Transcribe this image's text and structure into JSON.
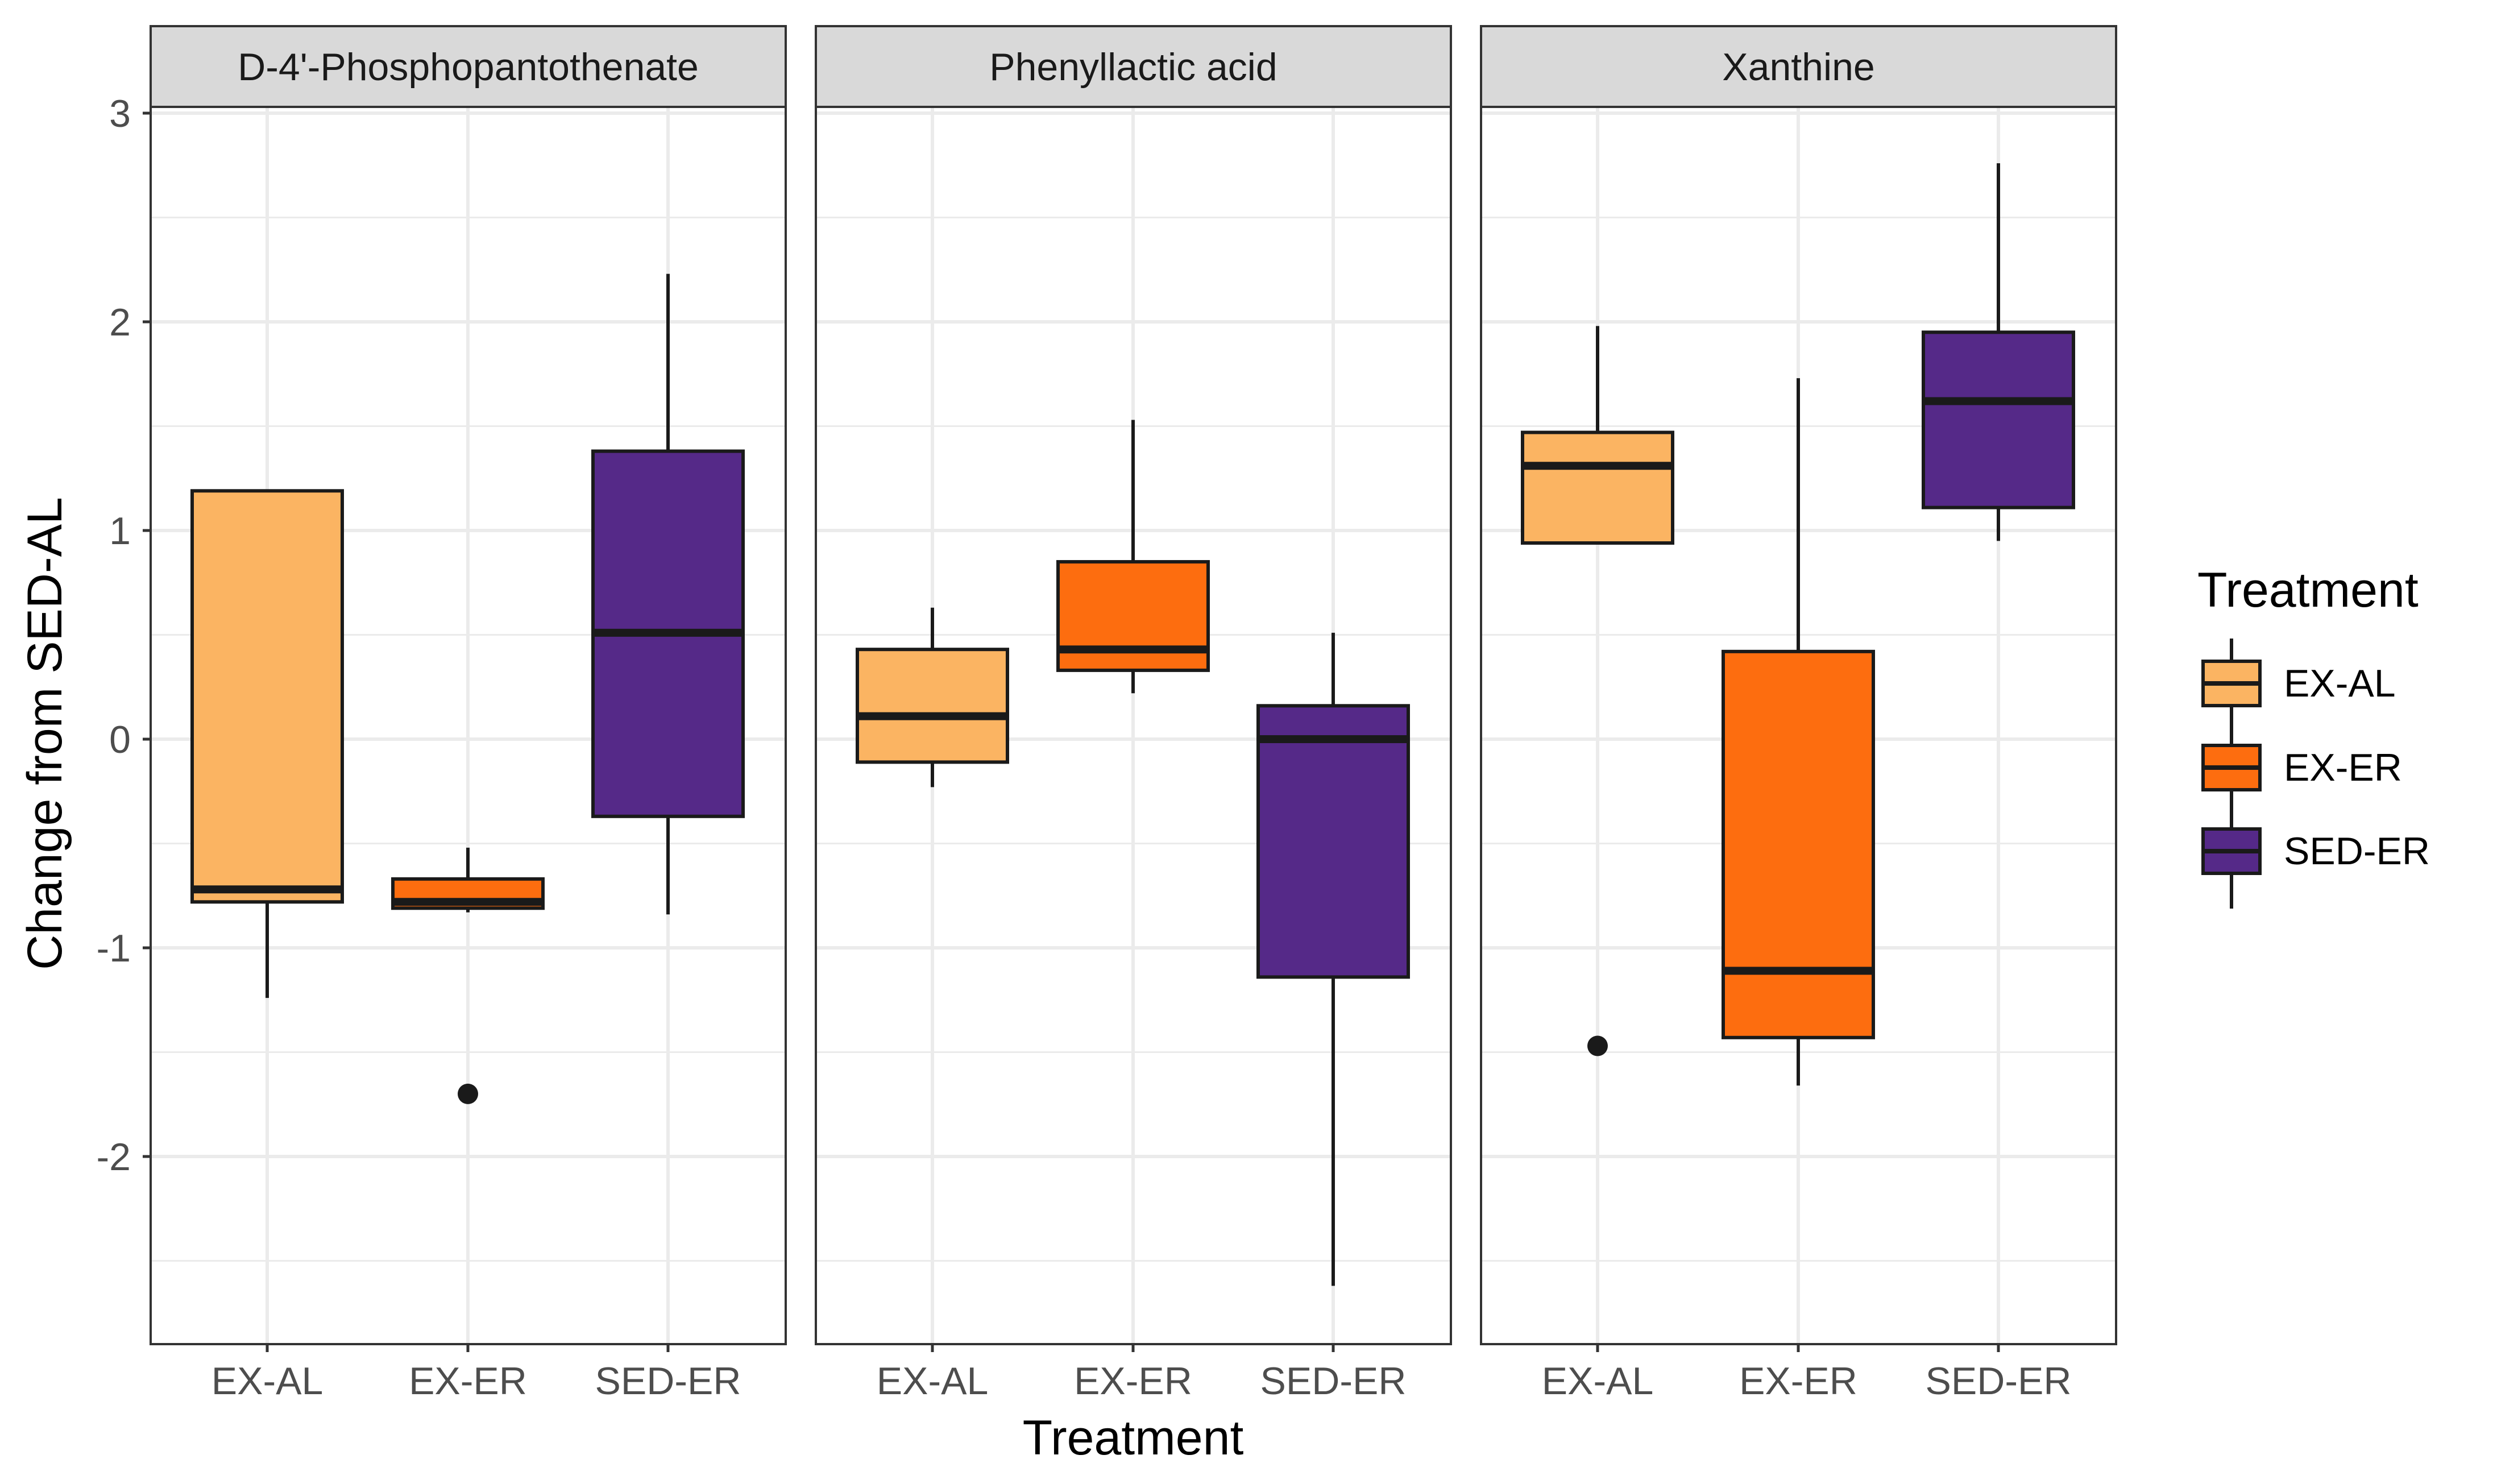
{
  "chart_data": {
    "type": "boxplot",
    "facets": [
      "D-4'-Phosphopantothenate",
      "Phenyllactic acid",
      "Xanthine"
    ],
    "categories": [
      "EX-AL",
      "EX-ER",
      "SED-ER"
    ],
    "xlabel": "Treatment",
    "ylabel": "Change from SED-AL",
    "ylim": [
      -2.85,
      3.0
    ],
    "y_ticks": [
      3,
      2,
      1,
      0,
      -1,
      -2
    ],
    "y_tick_labels": [
      "3",
      "2",
      "1",
      "0",
      "-1",
      "-2"
    ],
    "grid": true,
    "legend": {
      "title": "Treatment",
      "placement": "right",
      "entries": [
        "EX-AL",
        "EX-ER",
        "SED-ER"
      ]
    },
    "colors": {
      "EX-AL": "#FBB462",
      "EX-ER": "#FD6D0F",
      "SED-ER": "#552988"
    },
    "series": [
      {
        "facet": "D-4'-Phosphopantothenate",
        "boxes": [
          {
            "category": "EX-AL",
            "whisker_low": -1.24,
            "q1": -0.78,
            "median": -0.72,
            "q3": 1.19,
            "whisker_high": 1.19,
            "outliers": []
          },
          {
            "category": "EX-ER",
            "whisker_low": -0.83,
            "q1": -0.81,
            "median": -0.78,
            "q3": -0.67,
            "whisker_high": -0.52,
            "outliers": [
              -1.7
            ]
          },
          {
            "category": "SED-ER",
            "whisker_low": -0.84,
            "q1": -0.37,
            "median": 0.51,
            "q3": 1.38,
            "whisker_high": 2.23,
            "outliers": []
          }
        ]
      },
      {
        "facet": "Phenyllactic acid",
        "boxes": [
          {
            "category": "EX-AL",
            "whisker_low": -0.23,
            "q1": -0.11,
            "median": 0.11,
            "q3": 0.43,
            "whisker_high": 0.63,
            "outliers": []
          },
          {
            "category": "EX-ER",
            "whisker_low": 0.22,
            "q1": 0.33,
            "median": 0.43,
            "q3": 0.85,
            "whisker_high": 1.53,
            "outliers": []
          },
          {
            "category": "SED-ER",
            "whisker_low": -2.62,
            "q1": -1.14,
            "median": 0.0,
            "q3": 0.16,
            "whisker_high": 0.51,
            "outliers": []
          }
        ]
      },
      {
        "facet": "Xanthine",
        "boxes": [
          {
            "category": "EX-AL",
            "whisker_low": 0.94,
            "q1": 0.94,
            "median": 1.31,
            "q3": 1.47,
            "whisker_high": 1.98,
            "outliers": [
              -1.47
            ]
          },
          {
            "category": "EX-ER",
            "whisker_low": -1.66,
            "q1": -1.43,
            "median": -1.11,
            "q3": 0.42,
            "whisker_high": 1.73,
            "outliers": []
          },
          {
            "category": "SED-ER",
            "whisker_low": 0.95,
            "q1": 1.11,
            "median": 1.62,
            "q3": 1.95,
            "whisker_high": 2.76,
            "outliers": []
          }
        ]
      }
    ]
  }
}
